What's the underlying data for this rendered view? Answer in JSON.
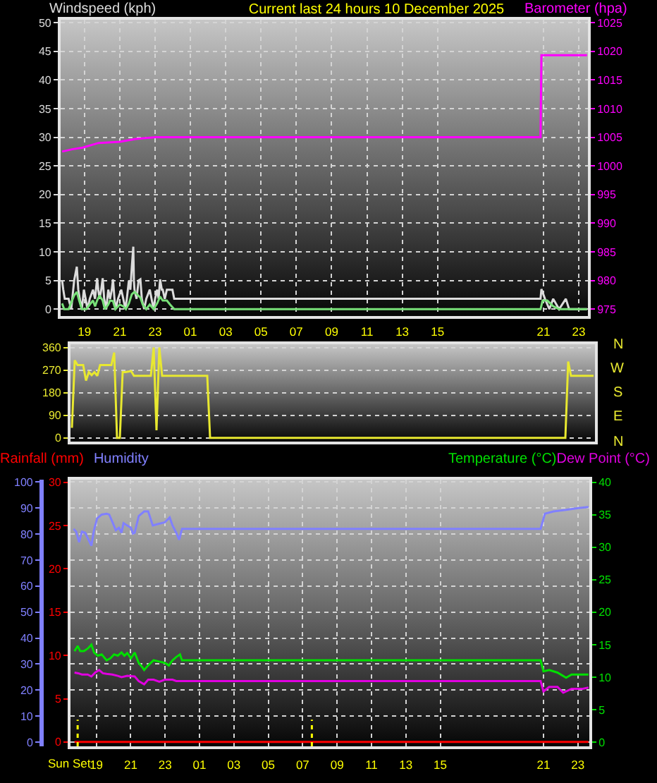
{
  "chart_data": [
    {
      "type": "line",
      "title": "Current last 24 hours 10 December 2025",
      "ylabel": "Windspeed (kph)",
      "y2label": "Barometer (hpa)",
      "xlim": [
        "2025-12-09T17:39",
        "2025-12-10T23:31"
      ],
      "xticks": [
        {
          "value": "2025-12-09T19:00",
          "label": "19"
        },
        {
          "value": "2025-12-09T21:00",
          "label": "21"
        },
        {
          "value": "2025-12-09T23:00",
          "label": "23"
        },
        {
          "value": "2025-12-10T01:00",
          "label": "01"
        },
        {
          "value": "2025-12-10T03:00",
          "label": "03"
        },
        {
          "value": "2025-12-10T05:00",
          "label": "05"
        },
        {
          "value": "2025-12-10T07:00",
          "label": "07"
        },
        {
          "value": "2025-12-10T09:00",
          "label": "09"
        },
        {
          "value": "2025-12-10T11:00",
          "label": "11"
        },
        {
          "value": "2025-12-10T13:00",
          "label": "13"
        },
        {
          "value": "2025-12-10T15:00",
          "label": "15"
        },
        {
          "value": "2025-12-10T21:00",
          "label": "21"
        },
        {
          "value": "2025-12-10T23:00",
          "label": "23"
        }
      ],
      "ylim": [
        -1.2,
        50.5
      ],
      "yticks": [
        0,
        5,
        10,
        15,
        20,
        25,
        30,
        35,
        40,
        45,
        50
      ],
      "y2lim": [
        973.8,
        1025.5
      ],
      "y2ticks": [
        975,
        980,
        985,
        990,
        995,
        1000,
        1005,
        1010,
        1015,
        1020,
        1025
      ],
      "grid": true,
      "series": [
        {
          "color": "#dcdcdc",
          "x": [
            "2025-12-09T17:44",
            "2025-12-09T17:48",
            "2025-12-09T17:53",
            "2025-12-09T18:06",
            "2025-12-09T18:15",
            "2025-12-09T18:25",
            "2025-12-09T18:34",
            "2025-12-09T18:39",
            "2025-12-09T18:44",
            "2025-12-09T18:51",
            "2025-12-09T18:58",
            "2025-12-09T19:04",
            "2025-12-09T19:10",
            "2025-12-09T19:18",
            "2025-12-09T19:29",
            "2025-12-09T19:36",
            "2025-12-09T19:43",
            "2025-12-09T19:47",
            "2025-12-09T19:51",
            "2025-12-09T19:57",
            "2025-12-09T20:02",
            "2025-12-09T20:07",
            "2025-12-09T20:14",
            "2025-12-09T20:21",
            "2025-12-09T20:27",
            "2025-12-09T20:33",
            "2025-12-09T20:37",
            "2025-12-09T20:42",
            "2025-12-09T20:46",
            "2025-12-09T20:54",
            "2025-12-09T21:05",
            "2025-12-09T21:12",
            "2025-12-09T21:19",
            "2025-12-09T21:24",
            "2025-12-09T21:31",
            "2025-12-09T21:36",
            "2025-12-09T21:41",
            "2025-12-09T21:46",
            "2025-12-09T21:48",
            "2025-12-09T21:50",
            "2025-12-09T21:57",
            "2025-12-09T22:04",
            "2025-12-09T22:10",
            "2025-12-09T22:15",
            "2025-12-09T22:23",
            "2025-12-09T22:30",
            "2025-12-09T22:42",
            "2025-12-09T22:48",
            "2025-12-09T22:55",
            "2025-12-09T23:00",
            "2025-12-09T23:07",
            "2025-12-09T23:12",
            "2025-12-09T23:17",
            "2025-12-09T23:23",
            "2025-12-09T23:26",
            "2025-12-09T23:33",
            "2025-12-09T23:40",
            "2025-12-09T23:48",
            "2025-12-09T23:59",
            "2025-12-10T00:05",
            "2025-12-10T20:50",
            "2025-12-10T20:53",
            "2025-12-10T21:05",
            "2025-12-10T21:20",
            "2025-12-10T21:33",
            "2025-12-10T21:53",
            "2025-12-10T22:16",
            "2025-12-10T22:27",
            "2025-12-10T23:28"
          ],
          "values": [
            5.0,
            3.4,
            1.8,
            1.8,
            0,
            5.0,
            7.4,
            3.4,
            1.8,
            0,
            3.4,
            1.8,
            0,
            1.8,
            3.4,
            1.8,
            5.4,
            3.4,
            1.8,
            3.4,
            5.4,
            1.8,
            0,
            3.4,
            1.8,
            3.4,
            5.2,
            1.8,
            0,
            1.8,
            3.4,
            1.8,
            0,
            1.8,
            5.0,
            3.4,
            7.4,
            10.9,
            5.0,
            3.4,
            1.8,
            5.0,
            5.2,
            1.8,
            0,
            1.8,
            3.4,
            1.8,
            0,
            1.8,
            3.4,
            1.8,
            5.2,
            3.4,
            3.4,
            1.8,
            3.4,
            3.4,
            3.4,
            1.8,
            1.8,
            3.5,
            1.8,
            0,
            1.8,
            0,
            1.8,
            0,
            0
          ]
        },
        {
          "color": "#78e078",
          "x": [
            "2025-12-09T17:44",
            "2025-12-09T17:51",
            "2025-12-09T18:06",
            "2025-12-09T18:18",
            "2025-12-09T18:25",
            "2025-12-09T18:34",
            "2025-12-09T18:42",
            "2025-12-09T18:51",
            "2025-12-09T19:06",
            "2025-12-09T19:18",
            "2025-12-09T19:29",
            "2025-12-09T19:36",
            "2025-12-09T19:43",
            "2025-12-09T19:51",
            "2025-12-09T20:02",
            "2025-12-09T20:09",
            "2025-12-09T20:21",
            "2025-12-09T20:27",
            "2025-12-09T20:37",
            "2025-12-09T20:45",
            "2025-12-09T21:00",
            "2025-12-09T21:12",
            "2025-12-09T21:21",
            "2025-12-09T21:31",
            "2025-12-09T21:41",
            "2025-12-09T21:50",
            "2025-12-09T22:00",
            "2025-12-09T22:10",
            "2025-12-09T22:18",
            "2025-12-09T22:30",
            "2025-12-09T22:42",
            "2025-12-09T22:55",
            "2025-12-09T23:07",
            "2025-12-09T23:17",
            "2025-12-09T23:26",
            "2025-12-09T23:40",
            "2025-12-09T23:51",
            "2025-12-10T00:05",
            "2025-12-10T20:50",
            "2025-12-10T20:57",
            "2025-12-10T21:13",
            "2025-12-10T21:33",
            "2025-12-10T21:53",
            "2025-12-10T23:28"
          ],
          "values": [
            1.0,
            0,
            0,
            1.5,
            2.4,
            3.0,
            1.5,
            0,
            0,
            0.8,
            1.5,
            0.5,
            1.5,
            2.4,
            1.5,
            0,
            0.8,
            1.5,
            1.4,
            0,
            0.8,
            0.5,
            0,
            1.0,
            2.6,
            3.0,
            2.5,
            2.0,
            0.8,
            0,
            0.8,
            0,
            1.0,
            2.2,
            1.5,
            1.5,
            0.8,
            0,
            0,
            1.5,
            1.5,
            0.5,
            0,
            0
          ]
        },
        {
          "color": "#ff00ff",
          "axis": "y2",
          "x": [
            "2025-12-09T17:44",
            "2025-12-09T18:18",
            "2025-12-09T18:54",
            "2025-12-09T19:48",
            "2025-12-09T21:00",
            "2025-12-09T21:54",
            "2025-12-09T23:00",
            "2025-12-10T20:50",
            "2025-12-10T20:53",
            "2025-12-10T23:28"
          ],
          "values": [
            1002.5,
            1002.9,
            1003.2,
            1004.0,
            1004.2,
            1004.7,
            1005.0,
            1005.0,
            1019.3,
            1019.3
          ]
        }
      ]
    },
    {
      "type": "line",
      "categories": [
        null,
        null,
        null,
        null,
        null,
        null,
        null,
        null,
        null,
        null,
        null,
        null,
        null,
        null,
        null,
        null,
        null,
        null,
        null,
        null,
        null,
        null,
        null,
        null,
        null,
        null,
        null,
        null,
        null,
        null,
        null,
        null,
        null,
        null,
        null,
        null,
        null,
        null,
        null,
        null,
        null,
        null,
        null,
        null,
        null,
        null,
        null,
        null,
        null,
        null,
        null,
        null,
        null,
        null,
        null,
        null,
        null,
        null,
        null,
        null,
        null,
        null,
        null,
        null,
        null,
        null,
        null,
        null,
        null,
        null,
        null,
        null,
        null,
        null,
        null,
        null,
        null,
        null,
        null,
        null,
        null,
        null,
        null,
        null,
        null,
        null,
        null,
        null,
        null,
        null,
        null,
        null,
        null,
        null,
        null,
        null,
        null,
        null,
        null,
        null,
        null,
        null,
        null,
        null,
        null,
        null,
        null,
        null,
        null,
        null,
        null,
        null,
        null,
        null,
        null,
        null,
        null,
        null,
        null,
        null,
        null,
        null,
        null,
        null,
        null,
        null,
        null,
        null,
        null,
        null,
        null,
        null,
        null,
        null,
        null,
        null,
        null,
        null,
        null,
        null,
        null,
        null,
        null,
        null,
        null,
        null,
        null,
        null,
        null,
        null,
        null,
        null,
        null,
        null,
        null,
        null,
        null,
        null,
        null,
        null,
        null,
        null,
        null,
        null,
        null,
        null,
        null,
        null,
        null,
        null,
        null,
        null,
        null,
        null,
        null,
        null,
        null,
        null,
        null,
        null,
        null,
        null,
        null,
        null,
        null,
        null
      ],
      "ylim": [
        -15,
        373
      ],
      "yticks": [
        0,
        90,
        180,
        270,
        360
      ],
      "tick_labels": "y",
      "grid": "y",
      "annotations": [
        "N",
        "W",
        "S",
        "E",
        "N"
      ],
      "series": [
        {
          "color": "#e8e830",
          "values": [
            40,
            309,
            290,
            290,
            290,
            228,
            262,
            250,
            262,
            247,
            290,
            290,
            290,
            290,
            290,
            340,
            0,
            0,
            262,
            262,
            264,
            266,
            247,
            247,
            247,
            247,
            247,
            247,
            247,
            360,
            30,
            360,
            247,
            247,
            247,
            247,
            247,
            247,
            247,
            247,
            247,
            247,
            247,
            247,
            247,
            247,
            247,
            247,
            247,
            0,
            0,
            0,
            0,
            0,
            0,
            0,
            0,
            0,
            0,
            0,
            0,
            0,
            0,
            0,
            0,
            0,
            0,
            0,
            0,
            0,
            0,
            0,
            0,
            0,
            0,
            0,
            0,
            0,
            0,
            0,
            0,
            0,
            0,
            0,
            0,
            0,
            0,
            0,
            0,
            0,
            0,
            0,
            0,
            0,
            0,
            0,
            0,
            0,
            0,
            0,
            0,
            0,
            0,
            0,
            0,
            0,
            0,
            0,
            0,
            0,
            0,
            0,
            0,
            0,
            0,
            0,
            0,
            0,
            0,
            0,
            0,
            0,
            0,
            0,
            0,
            0,
            0,
            0,
            0,
            0,
            0,
            0,
            0,
            0,
            0,
            0,
            0,
            0,
            0,
            0,
            0,
            0,
            0,
            0,
            0,
            0,
            0,
            0,
            0,
            0,
            0,
            0,
            0,
            0,
            0,
            0,
            0,
            0,
            0,
            0,
            0,
            0,
            0,
            0,
            0,
            0,
            0,
            0,
            0,
            0,
            0,
            0,
            0,
            0,
            0,
            0,
            304,
            247,
            247,
            247,
            247,
            247,
            247,
            247,
            247,
            247
          ]
        }
      ]
    },
    {
      "type": "line",
      "xlim": [
        "2025-12-09T17:30",
        "2025-12-10T23:40"
      ],
      "xticks": [
        {
          "value": "2025-12-09T19:00",
          "label": "19"
        },
        {
          "value": "2025-12-09T21:00",
          "label": "21"
        },
        {
          "value": "2025-12-09T23:00",
          "label": "23"
        },
        {
          "value": "2025-12-10T01:00",
          "label": "01"
        },
        {
          "value": "2025-12-10T03:00",
          "label": "03"
        },
        {
          "value": "2025-12-10T05:00",
          "label": "05"
        },
        {
          "value": "2025-12-10T07:00",
          "label": "07"
        },
        {
          "value": "2025-12-10T09:00",
          "label": "09"
        },
        {
          "value": "2025-12-10T11:00",
          "label": "11"
        },
        {
          "value": "2025-12-10T13:00",
          "label": "13"
        },
        {
          "value": "2025-12-10T15:00",
          "label": "15"
        },
        {
          "value": "2025-12-10T21:00",
          "label": "21"
        },
        {
          "value": "2025-12-10T23:00",
          "label": "23"
        }
      ],
      "ylim": [
        -1.6,
        100.9
      ],
      "yticks": [
        0,
        10,
        20,
        30,
        40,
        50,
        60,
        70,
        80,
        90,
        100
      ],
      "y2lim": [
        -0.5,
        30.3
      ],
      "y2ticks": [
        0,
        5,
        10,
        15,
        20,
        25,
        30
      ],
      "y3lim": [
        -0.65,
        40.4
      ],
      "y3ticks": [
        0,
        5,
        10,
        15,
        20,
        25,
        30,
        35,
        40
      ],
      "grid": true,
      "legend": "top",
      "ref_lines": [
        {
          "axis": "x",
          "value": "2025-12-09T17:55",
          "label": "Sun Set",
          "color": "#ffff00",
          "line_style": "dotted"
        },
        {
          "axis": "x",
          "value": "2025-12-10T07:32",
          "color": "#ffff00",
          "line_style": "dotted"
        }
      ],
      "series": [
        {
          "name": "Rainfall (mm)",
          "color": "#ff0000",
          "axis": "y2",
          "x": [
            "2025-12-09T17:44",
            "2025-12-10T23:37"
          ],
          "values": [
            0,
            0
          ]
        },
        {
          "name": "Humidity",
          "color": "#8080ff",
          "x": [
            "2025-12-09T17:41",
            "2025-12-09T17:50",
            "2025-12-09T18:00",
            "2025-12-09T18:10",
            "2025-12-09T18:21",
            "2025-12-09T18:37",
            "2025-12-09T18:43",
            "2025-12-09T18:52",
            "2025-12-09T19:03",
            "2025-12-09T19:19",
            "2025-12-09T19:36",
            "2025-12-09T19:45",
            "2025-12-09T19:58",
            "2025-12-09T20:08",
            "2025-12-09T20:19",
            "2025-12-09T20:28",
            "2025-12-09T20:35",
            "2025-12-09T20:48",
            "2025-12-09T21:01",
            "2025-12-09T21:08",
            "2025-12-09T21:14",
            "2025-12-09T21:28",
            "2025-12-09T21:47",
            "2025-12-09T22:01",
            "2025-12-09T22:17",
            "2025-12-09T22:34",
            "2025-12-09T22:59",
            "2025-12-09T23:16",
            "2025-12-09T23:26",
            "2025-12-09T23:39",
            "2025-12-09T23:49",
            "2025-12-09T23:59",
            "2025-12-10T20:50",
            "2025-12-10T21:05",
            "2025-12-10T21:35",
            "2025-12-10T22:19",
            "2025-12-10T23:02",
            "2025-12-10T23:37"
          ],
          "values": [
            82.0,
            80.9,
            76.9,
            80.9,
            80.5,
            76.9,
            75.5,
            81.5,
            86.0,
            87.5,
            87.8,
            87.5,
            84.2,
            81.5,
            82.4,
            80.5,
            84.2,
            83.3,
            82.4,
            80.2,
            80.5,
            86.9,
            88.7,
            88.7,
            83.3,
            83.8,
            84.5,
            86.4,
            83.3,
            80.5,
            77.8,
            82.0,
            82.0,
            87.8,
            88.7,
            89.3,
            90.0,
            90.4
          ]
        },
        {
          "name": "Temperature (°C)",
          "color": "#00e000",
          "axis": "y3",
          "x": [
            "2025-12-09T17:44",
            "2025-12-09T17:55",
            "2025-12-09T18:04",
            "2025-12-09T18:17",
            "2025-12-09T18:30",
            "2025-12-09T18:43",
            "2025-12-09T18:52",
            "2025-12-09T19:05",
            "2025-12-09T19:19",
            "2025-12-09T19:36",
            "2025-12-09T19:49",
            "2025-12-09T20:02",
            "2025-12-09T20:15",
            "2025-12-09T20:28",
            "2025-12-09T20:38",
            "2025-12-09T20:48",
            "2025-12-09T21:01",
            "2025-12-09T21:14",
            "2025-12-09T21:28",
            "2025-12-09T21:41",
            "2025-12-09T21:47",
            "2025-12-09T22:01",
            "2025-12-09T22:20",
            "2025-12-09T22:40",
            "2025-12-09T22:59",
            "2025-12-09T23:13",
            "2025-12-09T23:26",
            "2025-12-09T23:39",
            "2025-12-09T23:52",
            "2025-12-09T23:59",
            "2025-12-10T20:50",
            "2025-12-10T21:00",
            "2025-12-10T21:20",
            "2025-12-10T21:49",
            "2025-12-10T22:19",
            "2025-12-10T22:38",
            "2025-12-10T23:17",
            "2025-12-10T23:37"
          ],
          "values": [
            14.0,
            14.8,
            14.0,
            14.0,
            14.4,
            15.0,
            13.8,
            13.3,
            13.5,
            12.6,
            12.9,
            13.5,
            13.3,
            13.8,
            13.3,
            13.7,
            12.9,
            13.8,
            12.2,
            11.5,
            11.1,
            11.8,
            12.6,
            12.4,
            12.2,
            11.8,
            12.6,
            13.1,
            13.5,
            12.6,
            12.6,
            10.9,
            11.1,
            10.7,
            9.9,
            10.4,
            10.4,
            10.4
          ]
        },
        {
          "name": "Dew Point (°C)",
          "color": "#e000e0",
          "axis": "y3",
          "x": [
            "2025-12-09T17:44",
            "2025-12-09T17:57",
            "2025-12-09T18:10",
            "2025-12-09T18:30",
            "2025-12-09T18:43",
            "2025-12-09T18:56",
            "2025-12-09T19:10",
            "2025-12-09T19:23",
            "2025-12-09T19:36",
            "2025-12-09T19:56",
            "2025-12-09T20:15",
            "2025-12-09T20:28",
            "2025-12-09T20:48",
            "2025-12-09T21:14",
            "2025-12-09T21:28",
            "2025-12-09T21:47",
            "2025-12-09T22:01",
            "2025-12-09T22:20",
            "2025-12-09T22:40",
            "2025-12-09T22:59",
            "2025-12-09T23:26",
            "2025-12-09T23:39",
            "2025-12-09T23:59",
            "2025-12-10T20:50",
            "2025-12-10T21:00",
            "2025-12-10T21:20",
            "2025-12-10T21:49",
            "2025-12-10T22:09",
            "2025-12-10T22:38",
            "2025-12-10T23:17",
            "2025-12-10T23:37"
          ],
          "values": [
            10.7,
            10.6,
            10.4,
            10.4,
            10.1,
            10.7,
            11.1,
            10.6,
            10.5,
            10.4,
            10.2,
            10.0,
            10.2,
            10.1,
            9.4,
            8.9,
            9.6,
            9.6,
            9.3,
            9.6,
            9.6,
            9.4,
            9.4,
            9.4,
            7.8,
            8.5,
            8.5,
            7.6,
            8.2,
            8.2,
            8.4
          ]
        }
      ]
    }
  ]
}
